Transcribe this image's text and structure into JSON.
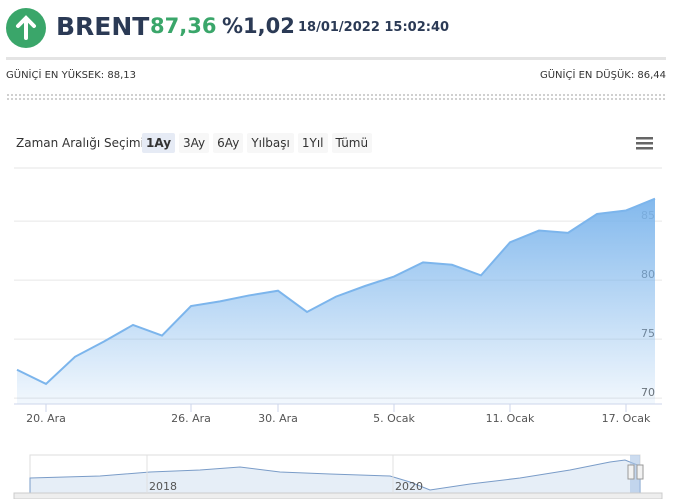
{
  "header": {
    "name": "BRENT",
    "price": "87,36",
    "change": "%1,02",
    "datetime": "18/01/2022 15:02:40",
    "high": "GÜNİÇİ EN YÜKSEK: 88,13",
    "low": "GÜNİÇİ EN DÜŞÜK: 86,44"
  },
  "range_selector": {
    "label": "Zaman Aralığı Seçimi",
    "buttons": [
      "1Ay",
      "3Ay",
      "6Ay",
      "Yılbaşı",
      "1Yıl",
      "Tümü"
    ]
  },
  "navigator": {
    "labels": [
      "2018",
      "2020"
    ]
  },
  "chart_data": {
    "type": "area",
    "categories": [
      null,
      "20. Ara",
      null,
      null,
      null,
      null,
      "26. Ara",
      null,
      null,
      "30. Ara",
      null,
      null,
      null,
      "5. Ocak",
      null,
      null,
      null,
      "11. Ocak",
      null,
      null,
      null,
      "17. Ocak",
      null
    ],
    "values": [
      72.4,
      71.2,
      73.5,
      74.8,
      76.2,
      75.3,
      77.8,
      78.2,
      78.7,
      79.1,
      77.3,
      78.6,
      79.5,
      80.3,
      81.5,
      81.3,
      80.4,
      83.2,
      84.2,
      84.0,
      85.6,
      85.9,
      86.9
    ],
    "color": "#7cb5ec",
    "ylim": [
      69.5,
      89.5
    ],
    "yticks": [
      70,
      75,
      80,
      85
    ],
    "grid": true
  }
}
